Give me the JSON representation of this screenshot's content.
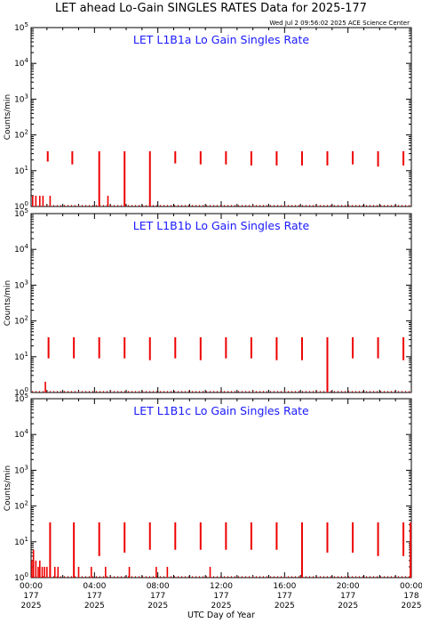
{
  "page": {
    "title": "LET ahead Lo-Gain SINGLES RATES Data for 2025-177",
    "timestamp": "Wed Jul  2 09:56:02 2025 ACE Science Center"
  },
  "colors": {
    "data": "#ee0000",
    "panel_title": "#1a1aff",
    "axis": "#000000"
  },
  "chart_data": [
    {
      "type": "scatter",
      "title": "LET L1B1a Lo Gain Singles Rate",
      "ylabel": "Counts/min",
      "yscale": "log",
      "ylim": [
        1,
        100000
      ],
      "xlim": [
        0,
        24
      ],
      "y_ticks": [
        "10^0",
        "10^1",
        "10^2",
        "10^3",
        "10^4",
        "10^5"
      ],
      "series": [
        {
          "spikes": [
            {
              "x": 1.05,
              "y_top": 35,
              "y_bottom": 18
            },
            {
              "x": 2.6,
              "y_top": 35,
              "y_bottom": 15
            },
            {
              "x": 4.3,
              "y_top": 35,
              "y_bottom": 1
            },
            {
              "x": 5.9,
              "y_top": 35,
              "y_bottom": 1
            },
            {
              "x": 7.5,
              "y_top": 35,
              "y_bottom": 1
            },
            {
              "x": 9.1,
              "y_top": 35,
              "y_bottom": 16
            },
            {
              "x": 10.7,
              "y_top": 35,
              "y_bottom": 15
            },
            {
              "x": 12.3,
              "y_top": 35,
              "y_bottom": 15
            },
            {
              "x": 13.9,
              "y_top": 35,
              "y_bottom": 14
            },
            {
              "x": 15.5,
              "y_top": 35,
              "y_bottom": 14
            },
            {
              "x": 17.1,
              "y_top": 35,
              "y_bottom": 14
            },
            {
              "x": 18.7,
              "y_top": 35,
              "y_bottom": 14
            },
            {
              "x": 20.3,
              "y_top": 35,
              "y_bottom": 15
            },
            {
              "x": 21.9,
              "y_top": 35,
              "y_bottom": 13
            },
            {
              "x": 23.5,
              "y_top": 35,
              "y_bottom": 14
            }
          ],
          "low_marks": [
            {
              "x": 0.1,
              "y": 2
            },
            {
              "x": 0.3,
              "y": 2
            },
            {
              "x": 0.55,
              "y": 2
            },
            {
              "x": 0.75,
              "y": 2
            },
            {
              "x": 1.2,
              "y": 2
            },
            {
              "x": 4.85,
              "y": 2
            }
          ]
        }
      ]
    },
    {
      "type": "scatter",
      "title": "LET L1B1b Lo Gain Singles Rate",
      "ylabel": "Counts/min",
      "yscale": "log",
      "ylim": [
        1,
        100000
      ],
      "xlim": [
        0,
        24
      ],
      "y_ticks": [
        "10^0",
        "10^1",
        "10^2",
        "10^3",
        "10^4",
        "10^5"
      ],
      "series": [
        {
          "spikes": [
            {
              "x": 1.1,
              "y_top": 35,
              "y_bottom": 9
            },
            {
              "x": 2.7,
              "y_top": 35,
              "y_bottom": 9
            },
            {
              "x": 4.3,
              "y_top": 35,
              "y_bottom": 9
            },
            {
              "x": 5.9,
              "y_top": 35,
              "y_bottom": 9
            },
            {
              "x": 7.5,
              "y_top": 35,
              "y_bottom": 8
            },
            {
              "x": 9.1,
              "y_top": 35,
              "y_bottom": 9
            },
            {
              "x": 10.7,
              "y_top": 35,
              "y_bottom": 8
            },
            {
              "x": 12.3,
              "y_top": 35,
              "y_bottom": 9
            },
            {
              "x": 13.9,
              "y_top": 35,
              "y_bottom": 9
            },
            {
              "x": 15.5,
              "y_top": 35,
              "y_bottom": 8
            },
            {
              "x": 17.1,
              "y_top": 35,
              "y_bottom": 8
            },
            {
              "x": 18.7,
              "y_top": 35,
              "y_bottom": 1
            },
            {
              "x": 20.3,
              "y_top": 35,
              "y_bottom": 9
            },
            {
              "x": 21.9,
              "y_top": 35,
              "y_bottom": 9
            },
            {
              "x": 23.5,
              "y_top": 35,
              "y_bottom": 8
            }
          ],
          "low_marks": [
            {
              "x": 0.9,
              "y": 2
            }
          ]
        }
      ]
    },
    {
      "type": "scatter",
      "title": "LET L1B1c Lo Gain Singles Rate",
      "ylabel": "Counts/min",
      "xlabel": "UTC Day of Year",
      "yscale": "log",
      "ylim": [
        1,
        100000
      ],
      "xlim": [
        0,
        24
      ],
      "y_ticks": [
        "10^0",
        "10^1",
        "10^2",
        "10^3",
        "10^4",
        "10^5"
      ],
      "x_ticks": [
        {
          "x": 0,
          "time": "00:00",
          "doy": "177",
          "year": "2025"
        },
        {
          "x": 4,
          "time": "04:00",
          "doy": "177",
          "year": "2025"
        },
        {
          "x": 8,
          "time": "08:00",
          "doy": "177",
          "year": "2025"
        },
        {
          "x": 12,
          "time": "12:00",
          "doy": "177",
          "year": "2025"
        },
        {
          "x": 16,
          "time": "16:00",
          "doy": "177",
          "year": "2025"
        },
        {
          "x": 20,
          "time": "20:00",
          "doy": "177",
          "year": "2025"
        },
        {
          "x": 24,
          "time": "00:00",
          "doy": "178",
          "year": "2025"
        }
      ],
      "series": [
        {
          "spikes": [
            {
              "x": 1.2,
              "y_top": 35,
              "y_bottom": 1
            },
            {
              "x": 2.7,
              "y_top": 35,
              "y_bottom": 1
            },
            {
              "x": 4.3,
              "y_top": 35,
              "y_bottom": 4
            },
            {
              "x": 5.9,
              "y_top": 35,
              "y_bottom": 5
            },
            {
              "x": 7.5,
              "y_top": 35,
              "y_bottom": 6
            },
            {
              "x": 9.1,
              "y_top": 35,
              "y_bottom": 6
            },
            {
              "x": 10.7,
              "y_top": 35,
              "y_bottom": 6
            },
            {
              "x": 12.3,
              "y_top": 35,
              "y_bottom": 6
            },
            {
              "x": 13.9,
              "y_top": 35,
              "y_bottom": 6
            },
            {
              "x": 15.5,
              "y_top": 35,
              "y_bottom": 6
            },
            {
              "x": 17.1,
              "y_top": 35,
              "y_bottom": 1
            },
            {
              "x": 18.7,
              "y_top": 35,
              "y_bottom": 5
            },
            {
              "x": 20.3,
              "y_top": 35,
              "y_bottom": 5
            },
            {
              "x": 21.9,
              "y_top": 35,
              "y_bottom": 4
            },
            {
              "x": 23.5,
              "y_top": 35,
              "y_bottom": 4
            },
            {
              "x": 23.95,
              "y_top": 35,
              "y_bottom": 1
            }
          ],
          "low_marks": [
            {
              "x": 0.05,
              "y": 3
            },
            {
              "x": 0.15,
              "y": 6
            },
            {
              "x": 0.3,
              "y": 3
            },
            {
              "x": 0.45,
              "y": 2
            },
            {
              "x": 0.55,
              "y": 3
            },
            {
              "x": 0.7,
              "y": 2
            },
            {
              "x": 0.85,
              "y": 2
            },
            {
              "x": 1.0,
              "y": 2
            },
            {
              "x": 1.5,
              "y": 2
            },
            {
              "x": 1.7,
              "y": 2
            },
            {
              "x": 3.0,
              "y": 2
            },
            {
              "x": 3.8,
              "y": 2
            },
            {
              "x": 4.7,
              "y": 2
            },
            {
              "x": 6.2,
              "y": 2
            },
            {
              "x": 7.9,
              "y": 2
            },
            {
              "x": 8.6,
              "y": 2
            },
            {
              "x": 11.3,
              "y": 2
            }
          ]
        }
      ]
    }
  ]
}
